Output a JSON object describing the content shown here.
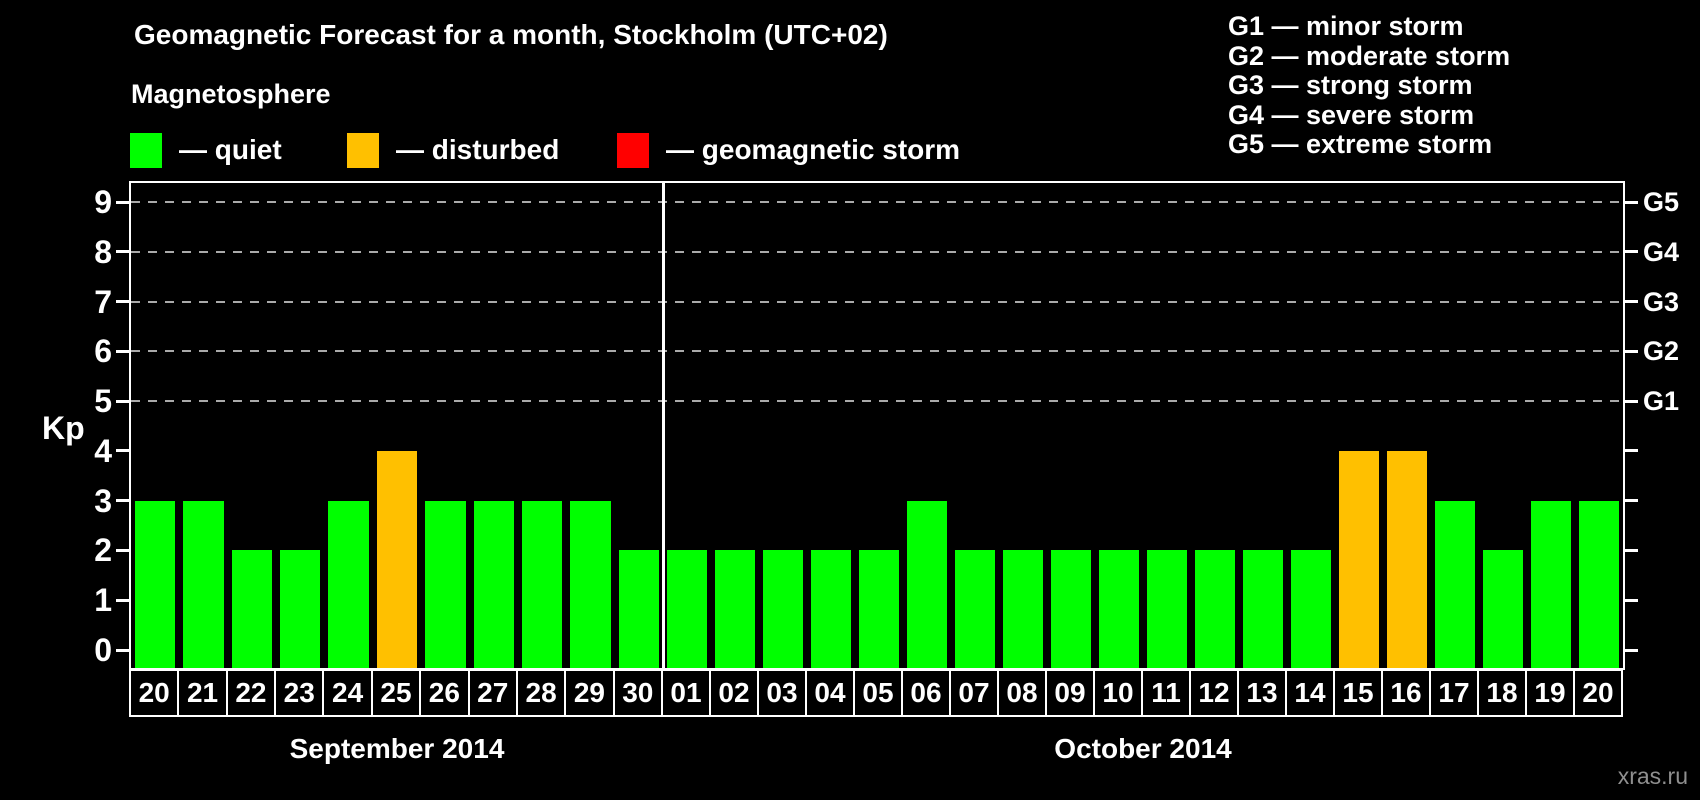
{
  "title": "Geomagnetic Forecast for a month, Stockholm (UTC+02)",
  "subtitle": "Magnetosphere",
  "legend": {
    "items": [
      {
        "state": "quiet",
        "label": "— quiet"
      },
      {
        "state": "disturbed",
        "label": "— disturbed"
      },
      {
        "state": "storm",
        "label": "— geomagnetic storm"
      }
    ]
  },
  "g_legend": {
    "lines": [
      "G1 — minor storm",
      "G2 — moderate storm",
      "G3 — strong storm",
      "G4 — severe storm",
      "G5 — extreme storm"
    ]
  },
  "axes": {
    "y_label": "Kp",
    "y_ticks": [
      0,
      1,
      2,
      3,
      4,
      5,
      6,
      7,
      8,
      9
    ],
    "right_labels": [
      {
        "kp": 5,
        "label": "G1"
      },
      {
        "kp": 6,
        "label": "G2"
      },
      {
        "kp": 7,
        "label": "G3"
      },
      {
        "kp": 8,
        "label": "G4"
      },
      {
        "kp": 9,
        "label": "G5"
      }
    ]
  },
  "colors": {
    "quiet": "#00ff00",
    "disturbed": "#ffc000",
    "storm": "#ff0000",
    "background": "#000000",
    "text": "#ffffff",
    "grid": "#aaaaaa",
    "watermark": "#8f8f8f"
  },
  "watermark": "xras.ru",
  "chart_data": {
    "type": "bar",
    "title": "Geomagnetic Forecast for a month, Stockholm (UTC+02)",
    "subtitle": "Magnetosphere",
    "xlabel": "",
    "ylabel": "Kp",
    "ylim": [
      0,
      9
    ],
    "grid": "dashed horizontal lines at Kp 5,6,7,8,9 (G1–G5 levels)",
    "legend_position": "top-left",
    "groups": [
      {
        "label": "September 2014",
        "days": [
          "20",
          "21",
          "22",
          "23",
          "24",
          "25",
          "26",
          "27",
          "28",
          "29",
          "30"
        ],
        "values": [
          3,
          3,
          2,
          2,
          3,
          4,
          3,
          3,
          3,
          3,
          2
        ],
        "states": [
          "quiet",
          "quiet",
          "quiet",
          "quiet",
          "quiet",
          "disturbed",
          "quiet",
          "quiet",
          "quiet",
          "quiet",
          "quiet"
        ]
      },
      {
        "label": "October 2014",
        "days": [
          "01",
          "02",
          "03",
          "04",
          "05",
          "06",
          "07",
          "08",
          "09",
          "10",
          "11",
          "12",
          "13",
          "14",
          "15",
          "16",
          "17",
          "18",
          "19",
          "20"
        ],
        "values": [
          2,
          2,
          2,
          2,
          2,
          3,
          2,
          2,
          2,
          2,
          2,
          2,
          2,
          2,
          4,
          4,
          3,
          2,
          3,
          3
        ],
        "states": [
          "quiet",
          "quiet",
          "quiet",
          "quiet",
          "quiet",
          "quiet",
          "quiet",
          "quiet",
          "quiet",
          "quiet",
          "quiet",
          "quiet",
          "quiet",
          "quiet",
          "disturbed",
          "disturbed",
          "quiet",
          "quiet",
          "quiet",
          "quiet"
        ]
      }
    ]
  }
}
